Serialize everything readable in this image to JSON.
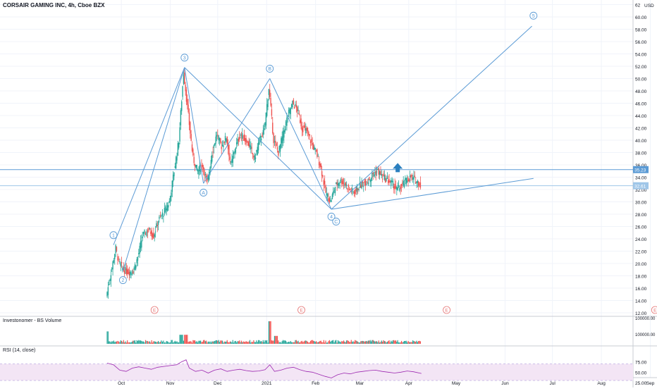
{
  "header": {
    "title": "CORSAIR GAMING INC, 4h, Cboe BZX"
  },
  "chart_data": {
    "type": "candlestick",
    "title": "CORSAIR GAMING INC, 4h, Cboe BZX",
    "currency": "USD",
    "price_axis": {
      "min": 12,
      "max": 62,
      "step": 2,
      "ticks": [
        "62",
        "60.00",
        "58.00",
        "56.00",
        "54.00",
        "52.00",
        "50.00",
        "48.00",
        "46.00",
        "44.00",
        "42.00",
        "40.00",
        "38.00",
        "36.00",
        "34.00",
        "32.00",
        "30.00",
        "28.00",
        "26.00",
        "24.00",
        "22.00",
        "20.00",
        "18.00",
        "16.00",
        "14.00",
        "12.00"
      ]
    },
    "time_axis": {
      "labels": [
        "Oct",
        "Nov",
        "Dec",
        "2021",
        "Feb",
        "Mar",
        "Apr",
        "May",
        "Jun",
        "Jul",
        "Aug",
        "Sep"
      ],
      "label_days": [
        9,
        40,
        70,
        101,
        132,
        160,
        191,
        221,
        252,
        282,
        313,
        344
      ]
    },
    "price_lines": [
      {
        "value": 35.23,
        "label": "35.23",
        "color": "#5b9bd5"
      },
      {
        "value": 32.61,
        "label": "32.61",
        "color": "#9fc6e8"
      }
    ],
    "approx_closes": [
      {
        "day": 0,
        "price": 14.6
      },
      {
        "day": 3,
        "price": 18.5
      },
      {
        "day": 6,
        "price": 22.5
      },
      {
        "day": 8,
        "price": 20.2
      },
      {
        "day": 11,
        "price": 19.0
      },
      {
        "day": 14,
        "price": 18.6
      },
      {
        "day": 17,
        "price": 18.8
      },
      {
        "day": 20,
        "price": 21.0
      },
      {
        "day": 23,
        "price": 24.5
      },
      {
        "day": 27,
        "price": 25.5
      },
      {
        "day": 30,
        "price": 24.5
      },
      {
        "day": 33,
        "price": 27.0
      },
      {
        "day": 37,
        "price": 28.5
      },
      {
        "day": 40,
        "price": 30.0
      },
      {
        "day": 43,
        "price": 35.0
      },
      {
        "day": 46,
        "price": 40.0
      },
      {
        "day": 49,
        "price": 51.0
      },
      {
        "day": 52,
        "price": 44.0
      },
      {
        "day": 55,
        "price": 37.0
      },
      {
        "day": 58,
        "price": 35.0
      },
      {
        "day": 61,
        "price": 36.0
      },
      {
        "day": 64,
        "price": 33.0
      },
      {
        "day": 67,
        "price": 38.0
      },
      {
        "day": 70,
        "price": 41.0
      },
      {
        "day": 73,
        "price": 39.0
      },
      {
        "day": 76,
        "price": 40.5
      },
      {
        "day": 79,
        "price": 36.0
      },
      {
        "day": 82,
        "price": 39.0
      },
      {
        "day": 85,
        "price": 41.0
      },
      {
        "day": 88,
        "price": 40.0
      },
      {
        "day": 91,
        "price": 39.0
      },
      {
        "day": 94,
        "price": 37.0
      },
      {
        "day": 97,
        "price": 40.0
      },
      {
        "day": 100,
        "price": 41.5
      },
      {
        "day": 103,
        "price": 48.5
      },
      {
        "day": 106,
        "price": 40.0
      },
      {
        "day": 109,
        "price": 38.0
      },
      {
        "day": 112,
        "price": 41.0
      },
      {
        "day": 115,
        "price": 44.0
      },
      {
        "day": 118,
        "price": 46.0
      },
      {
        "day": 121,
        "price": 45.0
      },
      {
        "day": 124,
        "price": 42.0
      },
      {
        "day": 127,
        "price": 41.5
      },
      {
        "day": 130,
        "price": 39.5
      },
      {
        "day": 133,
        "price": 38.0
      },
      {
        "day": 136,
        "price": 35.5
      },
      {
        "day": 139,
        "price": 31.5
      },
      {
        "day": 142,
        "price": 30.0
      },
      {
        "day": 145,
        "price": 32.5
      },
      {
        "day": 148,
        "price": 33.5
      },
      {
        "day": 151,
        "price": 33.0
      },
      {
        "day": 154,
        "price": 32.0
      },
      {
        "day": 157,
        "price": 31.5
      },
      {
        "day": 160,
        "price": 32.5
      },
      {
        "day": 163,
        "price": 33.0
      },
      {
        "day": 166,
        "price": 33.5
      },
      {
        "day": 169,
        "price": 34.5
      },
      {
        "day": 172,
        "price": 35.0
      },
      {
        "day": 175,
        "price": 34.0
      },
      {
        "day": 178,
        "price": 33.5
      },
      {
        "day": 181,
        "price": 33.0
      },
      {
        "day": 184,
        "price": 32.0
      },
      {
        "day": 187,
        "price": 32.5
      },
      {
        "day": 190,
        "price": 33.5
      },
      {
        "day": 193,
        "price": 34.0
      },
      {
        "day": 196,
        "price": 33.5
      },
      {
        "day": 199,
        "price": 32.8
      }
    ],
    "wave_lines": [
      {
        "from": {
          "day": 4,
          "price": 23.0
        },
        "to": {
          "day": 49,
          "price": 51.8
        }
      },
      {
        "from": {
          "day": 10,
          "price": 18.8
        },
        "to": {
          "day": 49,
          "price": 51.8
        }
      },
      {
        "from": {
          "day": 49,
          "price": 51.8
        },
        "to": {
          "day": 61,
          "price": 33.0
        }
      },
      {
        "from": {
          "day": 61,
          "price": 33.0
        },
        "to": {
          "day": 103,
          "price": 50.0
        }
      },
      {
        "from": {
          "day": 49,
          "price": 51.8
        },
        "to": {
          "day": 142,
          "price": 28.8
        }
      },
      {
        "from": {
          "day": 103,
          "price": 50.0
        },
        "to": {
          "day": 142,
          "price": 28.8
        }
      },
      {
        "from": {
          "day": 142,
          "price": 28.8
        },
        "to": {
          "day": 269,
          "price": 58.5
        }
      },
      {
        "from": {
          "day": 142,
          "price": 28.8
        },
        "to": {
          "day": 270,
          "price": 33.8
        }
      }
    ],
    "wave_labels": [
      {
        "label": "1",
        "day": 4,
        "price": 24.6
      },
      {
        "label": "2",
        "day": 10,
        "price": 17.3
      },
      {
        "label": "3",
        "day": 49,
        "price": 53.4
      },
      {
        "label": "A",
        "day": 61,
        "price": 31.5
      },
      {
        "label": "B",
        "day": 103,
        "price": 51.6
      },
      {
        "label": "4",
        "day": 142,
        "price": 27.6
      },
      {
        "label": "C",
        "day": 145,
        "price": 26.8
      },
      {
        "label": "5",
        "day": 270,
        "price": 60.2
      }
    ],
    "arrow": {
      "day": 184,
      "price": 35.5,
      "color": "#2a7fbf"
    },
    "events": [
      {
        "label": "E",
        "day": 30
      },
      {
        "label": "E",
        "day": 123
      },
      {
        "label": "E",
        "day": 215
      },
      {
        "label": "E",
        "day": 347
      }
    ],
    "volume": {
      "title": "Investonomer - BS Volume",
      "axis_label": "100000.00",
      "axis_label_top": "100000.00",
      "spikes": [
        {
          "day": 0,
          "rel": 0.55
        },
        {
          "day": 47,
          "rel": 0.4
        },
        {
          "day": 50,
          "rel": 0.4
        },
        {
          "day": 103,
          "rel": 1.0
        },
        {
          "day": 107,
          "rel": 0.35
        }
      ]
    },
    "rsi": {
      "title": "RSI (14, close)",
      "ticks": [
        "75.00",
        "50.00",
        "25.00"
      ],
      "upper": 70,
      "lower": 30,
      "approx_values": [
        {
          "day": 0,
          "value": 72
        },
        {
          "day": 4,
          "value": 68
        },
        {
          "day": 8,
          "value": 55
        },
        {
          "day": 12,
          "value": 52
        },
        {
          "day": 16,
          "value": 60
        },
        {
          "day": 20,
          "value": 63
        },
        {
          "day": 24,
          "value": 60
        },
        {
          "day": 28,
          "value": 57
        },
        {
          "day": 32,
          "value": 62
        },
        {
          "day": 36,
          "value": 64
        },
        {
          "day": 40,
          "value": 66
        },
        {
          "day": 44,
          "value": 68
        },
        {
          "day": 47,
          "value": 75
        },
        {
          "day": 50,
          "value": 80
        },
        {
          "day": 52,
          "value": 60
        },
        {
          "day": 56,
          "value": 52
        },
        {
          "day": 60,
          "value": 55
        },
        {
          "day": 64,
          "value": 48
        },
        {
          "day": 68,
          "value": 55
        },
        {
          "day": 72,
          "value": 58
        },
        {
          "day": 76,
          "value": 52
        },
        {
          "day": 80,
          "value": 55
        },
        {
          "day": 84,
          "value": 57
        },
        {
          "day": 88,
          "value": 54
        },
        {
          "day": 92,
          "value": 52
        },
        {
          "day": 96,
          "value": 53
        },
        {
          "day": 100,
          "value": 56
        },
        {
          "day": 103,
          "value": 68
        },
        {
          "day": 106,
          "value": 52
        },
        {
          "day": 110,
          "value": 55
        },
        {
          "day": 114,
          "value": 60
        },
        {
          "day": 118,
          "value": 62
        },
        {
          "day": 122,
          "value": 56
        },
        {
          "day": 126,
          "value": 52
        },
        {
          "day": 130,
          "value": 50
        },
        {
          "day": 134,
          "value": 45
        },
        {
          "day": 138,
          "value": 40
        },
        {
          "day": 142,
          "value": 36
        },
        {
          "day": 146,
          "value": 44
        },
        {
          "day": 150,
          "value": 48
        },
        {
          "day": 154,
          "value": 46
        },
        {
          "day": 158,
          "value": 50
        },
        {
          "day": 162,
          "value": 52
        },
        {
          "day": 166,
          "value": 54
        },
        {
          "day": 170,
          "value": 55
        },
        {
          "day": 174,
          "value": 52
        },
        {
          "day": 178,
          "value": 50
        },
        {
          "day": 182,
          "value": 48
        },
        {
          "day": 186,
          "value": 50
        },
        {
          "day": 190,
          "value": 53
        },
        {
          "day": 194,
          "value": 51
        },
        {
          "day": 199,
          "value": 47
        }
      ]
    }
  },
  "colors": {
    "up": "#26a69a",
    "down": "#ef5350",
    "wave": "#5b9bd5",
    "event": "#e57373",
    "rsi_line": "#9c27b0",
    "rsi_band": "#f3e5f5",
    "grid": "#f0f3fa",
    "axis_text": "#131722"
  }
}
